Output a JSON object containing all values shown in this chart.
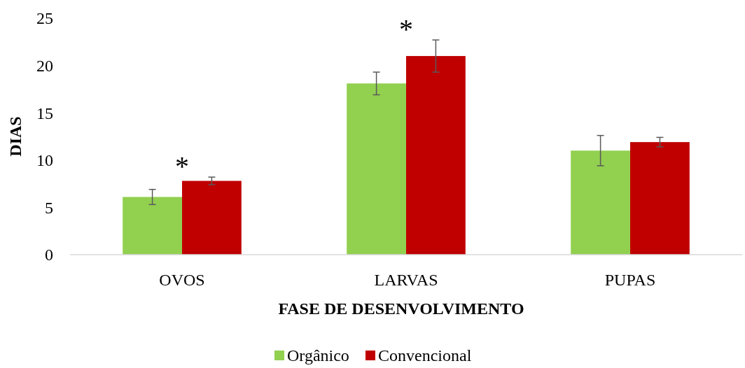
{
  "chart_data": {
    "type": "bar",
    "xlabel": "FASE DE DESENVOLVIMENTO",
    "ylabel": "DIAS",
    "categories": [
      "OVOS",
      "LARVAS",
      "PUPAS"
    ],
    "series": [
      {
        "name": "Orgânico",
        "color": "#92d050",
        "values": [
          6.1,
          18.1,
          11.0
        ],
        "errors": [
          0.8,
          1.2,
          1.6
        ]
      },
      {
        "name": "Convencional",
        "color": "#c00000",
        "values": [
          7.8,
          21.0,
          11.9
        ],
        "errors": [
          0.4,
          1.7,
          0.5
        ]
      }
    ],
    "ylim": [
      0,
      25
    ],
    "yticks": [
      0,
      5,
      10,
      15,
      20,
      25
    ],
    "grid": false,
    "legend": "bottom",
    "annotations": [
      "*",
      "*"
    ]
  }
}
